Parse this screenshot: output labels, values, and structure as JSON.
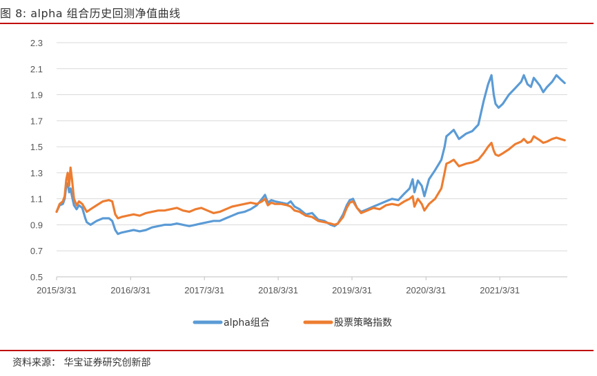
{
  "figure": {
    "title": "图 8:  alpha 组合历史回测净值曲线",
    "source": "资料来源：  华宝证券研究创新部"
  },
  "chart_data": {
    "type": "line",
    "ylim": [
      0.5,
      2.3
    ],
    "y_ticks": [
      "0.5",
      "0.7",
      "0.9",
      "1.1",
      "1.3",
      "1.5",
      "1.7",
      "1.9",
      "2.1",
      "2.3"
    ],
    "x_range": [
      "2015-03-31",
      "2022-02-28"
    ],
    "x_ticks": [
      {
        "label": "2015/3/31",
        "date": "2015-03-31"
      },
      {
        "label": "2016/3/31",
        "date": "2016-03-31"
      },
      {
        "label": "2017/3/31",
        "date": "2017-03-31"
      },
      {
        "label": "2018/3/31",
        "date": "2018-03-31"
      },
      {
        "label": "2019/3/31",
        "date": "2019-03-31"
      },
      {
        "label": "2020/3/31",
        "date": "2020-03-31"
      },
      {
        "label": "2021/3/31",
        "date": "2021-03-31"
      }
    ],
    "grid": "horizontal",
    "legend_position": "bottom",
    "series": [
      {
        "name": "alpha组合",
        "color": "#5b9bd5",
        "points": [
          [
            "2015-03-31",
            1.0
          ],
          [
            "2015-04-15",
            1.05
          ],
          [
            "2015-05-01",
            1.06
          ],
          [
            "2015-05-10",
            1.1
          ],
          [
            "2015-05-18",
            1.2
          ],
          [
            "2015-05-25",
            1.22
          ],
          [
            "2015-06-01",
            1.15
          ],
          [
            "2015-06-08",
            1.18
          ],
          [
            "2015-06-15",
            1.12
          ],
          [
            "2015-06-25",
            1.05
          ],
          [
            "2015-07-08",
            1.02
          ],
          [
            "2015-07-20",
            1.05
          ],
          [
            "2015-08-05",
            1.03
          ],
          [
            "2015-08-20",
            0.95
          ],
          [
            "2015-08-27",
            0.92
          ],
          [
            "2015-09-15",
            0.9
          ],
          [
            "2015-10-15",
            0.93
          ],
          [
            "2015-11-15",
            0.95
          ],
          [
            "2015-12-15",
            0.95
          ],
          [
            "2015-12-31",
            0.93
          ],
          [
            "2016-01-15",
            0.86
          ],
          [
            "2016-01-28",
            0.83
          ],
          [
            "2016-02-15",
            0.84
          ],
          [
            "2016-03-15",
            0.85
          ],
          [
            "2016-04-15",
            0.86
          ],
          [
            "2016-05-15",
            0.85
          ],
          [
            "2016-06-15",
            0.86
          ],
          [
            "2016-07-15",
            0.88
          ],
          [
            "2016-08-15",
            0.89
          ],
          [
            "2016-09-15",
            0.9
          ],
          [
            "2016-10-15",
            0.9
          ],
          [
            "2016-11-15",
            0.91
          ],
          [
            "2016-12-15",
            0.9
          ],
          [
            "2017-01-15",
            0.89
          ],
          [
            "2017-02-15",
            0.9
          ],
          [
            "2017-03-15",
            0.91
          ],
          [
            "2017-04-15",
            0.92
          ],
          [
            "2017-05-15",
            0.93
          ],
          [
            "2017-06-15",
            0.93
          ],
          [
            "2017-07-15",
            0.95
          ],
          [
            "2017-08-15",
            0.97
          ],
          [
            "2017-09-15",
            0.99
          ],
          [
            "2017-10-15",
            1.0
          ],
          [
            "2017-11-15",
            1.02
          ],
          [
            "2017-12-15",
            1.05
          ],
          [
            "2018-01-10",
            1.1
          ],
          [
            "2018-01-25",
            1.13
          ],
          [
            "2018-02-08",
            1.07
          ],
          [
            "2018-02-25",
            1.09
          ],
          [
            "2018-03-15",
            1.08
          ],
          [
            "2018-04-15",
            1.07
          ],
          [
            "2018-05-15",
            1.06
          ],
          [
            "2018-06-01",
            1.08
          ],
          [
            "2018-06-20",
            1.04
          ],
          [
            "2018-07-15",
            1.02
          ],
          [
            "2018-08-15",
            0.98
          ],
          [
            "2018-09-15",
            0.99
          ],
          [
            "2018-10-15",
            0.94
          ],
          [
            "2018-11-15",
            0.93
          ],
          [
            "2018-12-15",
            0.9
          ],
          [
            "2019-01-04",
            0.89
          ],
          [
            "2019-01-20",
            0.91
          ],
          [
            "2019-02-15",
            0.98
          ],
          [
            "2019-03-05",
            1.05
          ],
          [
            "2019-03-20",
            1.09
          ],
          [
            "2019-04-05",
            1.1
          ],
          [
            "2019-04-25",
            1.03
          ],
          [
            "2019-05-15",
            1.0
          ],
          [
            "2019-06-15",
            1.02
          ],
          [
            "2019-07-15",
            1.04
          ],
          [
            "2019-08-15",
            1.06
          ],
          [
            "2019-09-15",
            1.08
          ],
          [
            "2019-10-15",
            1.1
          ],
          [
            "2019-11-15",
            1.09
          ],
          [
            "2019-12-15",
            1.14
          ],
          [
            "2020-01-10",
            1.18
          ],
          [
            "2020-01-25",
            1.25
          ],
          [
            "2020-02-03",
            1.15
          ],
          [
            "2020-02-20",
            1.24
          ],
          [
            "2020-03-10",
            1.2
          ],
          [
            "2020-03-23",
            1.12
          ],
          [
            "2020-04-15",
            1.25
          ],
          [
            "2020-05-15",
            1.32
          ],
          [
            "2020-06-15",
            1.4
          ],
          [
            "2020-07-01",
            1.5
          ],
          [
            "2020-07-10",
            1.58
          ],
          [
            "2020-07-25",
            1.6
          ],
          [
            "2020-08-15",
            1.63
          ],
          [
            "2020-09-10",
            1.56
          ],
          [
            "2020-10-15",
            1.6
          ],
          [
            "2020-11-15",
            1.62
          ],
          [
            "2020-12-15",
            1.67
          ],
          [
            "2021-01-10",
            1.85
          ],
          [
            "2021-02-01",
            1.98
          ],
          [
            "2021-02-18",
            2.05
          ],
          [
            "2021-03-01",
            1.9
          ],
          [
            "2021-03-10",
            1.83
          ],
          [
            "2021-03-25",
            1.8
          ],
          [
            "2021-04-15",
            1.83
          ],
          [
            "2021-05-15",
            1.9
          ],
          [
            "2021-06-15",
            1.95
          ],
          [
            "2021-07-15",
            2.0
          ],
          [
            "2021-07-28",
            2.05
          ],
          [
            "2021-08-15",
            1.98
          ],
          [
            "2021-09-01",
            1.96
          ],
          [
            "2021-09-15",
            2.03
          ],
          [
            "2021-10-15",
            1.97
          ],
          [
            "2021-11-01",
            1.92
          ],
          [
            "2021-11-20",
            1.96
          ],
          [
            "2021-12-15",
            2.0
          ],
          [
            "2022-01-05",
            2.05
          ],
          [
            "2022-01-25",
            2.02
          ],
          [
            "2022-02-15",
            1.99
          ]
        ]
      },
      {
        "name": "股票策略指数",
        "color": "#ed7d31",
        "points": [
          [
            "2015-03-31",
            1.0
          ],
          [
            "2015-04-15",
            1.06
          ],
          [
            "2015-05-01",
            1.08
          ],
          [
            "2015-05-10",
            1.12
          ],
          [
            "2015-05-18",
            1.25
          ],
          [
            "2015-05-25",
            1.3
          ],
          [
            "2015-06-01",
            1.2
          ],
          [
            "2015-06-08",
            1.34
          ],
          [
            "2015-06-15",
            1.25
          ],
          [
            "2015-06-25",
            1.1
          ],
          [
            "2015-07-08",
            1.05
          ],
          [
            "2015-07-20",
            1.08
          ],
          [
            "2015-08-05",
            1.06
          ],
          [
            "2015-08-20",
            1.02
          ],
          [
            "2015-08-27",
            1.0
          ],
          [
            "2015-09-15",
            1.02
          ],
          [
            "2015-10-15",
            1.05
          ],
          [
            "2015-11-15",
            1.08
          ],
          [
            "2015-12-15",
            1.09
          ],
          [
            "2015-12-31",
            1.08
          ],
          [
            "2016-01-15",
            0.98
          ],
          [
            "2016-01-28",
            0.95
          ],
          [
            "2016-02-15",
            0.96
          ],
          [
            "2016-03-15",
            0.97
          ],
          [
            "2016-04-15",
            0.98
          ],
          [
            "2016-05-15",
            0.97
          ],
          [
            "2016-06-15",
            0.99
          ],
          [
            "2016-07-15",
            1.0
          ],
          [
            "2016-08-15",
            1.01
          ],
          [
            "2016-09-15",
            1.01
          ],
          [
            "2016-10-15",
            1.02
          ],
          [
            "2016-11-15",
            1.03
          ],
          [
            "2016-12-15",
            1.01
          ],
          [
            "2017-01-15",
            1.0
          ],
          [
            "2017-02-15",
            1.02
          ],
          [
            "2017-03-15",
            1.03
          ],
          [
            "2017-04-15",
            1.01
          ],
          [
            "2017-05-15",
            0.99
          ],
          [
            "2017-06-15",
            1.0
          ],
          [
            "2017-07-15",
            1.02
          ],
          [
            "2017-08-15",
            1.04
          ],
          [
            "2017-09-15",
            1.05
          ],
          [
            "2017-10-15",
            1.06
          ],
          [
            "2017-11-15",
            1.07
          ],
          [
            "2017-12-15",
            1.06
          ],
          [
            "2018-01-10",
            1.08
          ],
          [
            "2018-01-25",
            1.1
          ],
          [
            "2018-02-08",
            1.05
          ],
          [
            "2018-02-25",
            1.07
          ],
          [
            "2018-03-15",
            1.06
          ],
          [
            "2018-04-15",
            1.06
          ],
          [
            "2018-05-15",
            1.05
          ],
          [
            "2018-06-01",
            1.04
          ],
          [
            "2018-06-20",
            1.01
          ],
          [
            "2018-07-15",
            1.0
          ],
          [
            "2018-08-15",
            0.97
          ],
          [
            "2018-09-15",
            0.96
          ],
          [
            "2018-10-15",
            0.93
          ],
          [
            "2018-11-15",
            0.92
          ],
          [
            "2018-12-15",
            0.91
          ],
          [
            "2019-01-04",
            0.9
          ],
          [
            "2019-01-20",
            0.91
          ],
          [
            "2019-02-15",
            0.96
          ],
          [
            "2019-03-05",
            1.03
          ],
          [
            "2019-03-20",
            1.07
          ],
          [
            "2019-04-05",
            1.08
          ],
          [
            "2019-04-25",
            1.03
          ],
          [
            "2019-05-15",
            0.99
          ],
          [
            "2019-06-15",
            1.01
          ],
          [
            "2019-07-15",
            1.03
          ],
          [
            "2019-08-15",
            1.02
          ],
          [
            "2019-09-15",
            1.05
          ],
          [
            "2019-10-15",
            1.06
          ],
          [
            "2019-11-15",
            1.05
          ],
          [
            "2019-12-15",
            1.08
          ],
          [
            "2020-01-10",
            1.1
          ],
          [
            "2020-01-25",
            1.12
          ],
          [
            "2020-02-03",
            1.04
          ],
          [
            "2020-02-20",
            1.1
          ],
          [
            "2020-03-10",
            1.06
          ],
          [
            "2020-03-23",
            1.01
          ],
          [
            "2020-04-15",
            1.06
          ],
          [
            "2020-05-15",
            1.1
          ],
          [
            "2020-06-15",
            1.18
          ],
          [
            "2020-07-01",
            1.3
          ],
          [
            "2020-07-10",
            1.37
          ],
          [
            "2020-07-25",
            1.38
          ],
          [
            "2020-08-15",
            1.4
          ],
          [
            "2020-09-10",
            1.35
          ],
          [
            "2020-10-15",
            1.37
          ],
          [
            "2020-11-15",
            1.38
          ],
          [
            "2020-12-15",
            1.4
          ],
          [
            "2021-01-10",
            1.45
          ],
          [
            "2021-02-01",
            1.5
          ],
          [
            "2021-02-18",
            1.53
          ],
          [
            "2021-03-01",
            1.47
          ],
          [
            "2021-03-10",
            1.44
          ],
          [
            "2021-03-25",
            1.43
          ],
          [
            "2021-04-15",
            1.45
          ],
          [
            "2021-05-15",
            1.48
          ],
          [
            "2021-06-15",
            1.52
          ],
          [
            "2021-07-15",
            1.54
          ],
          [
            "2021-07-28",
            1.56
          ],
          [
            "2021-08-15",
            1.53
          ],
          [
            "2021-09-01",
            1.54
          ],
          [
            "2021-09-15",
            1.58
          ],
          [
            "2021-10-15",
            1.55
          ],
          [
            "2021-11-01",
            1.53
          ],
          [
            "2021-11-20",
            1.54
          ],
          [
            "2021-12-15",
            1.56
          ],
          [
            "2022-01-05",
            1.57
          ],
          [
            "2022-01-25",
            1.56
          ],
          [
            "2022-02-15",
            1.55
          ]
        ]
      }
    ]
  }
}
